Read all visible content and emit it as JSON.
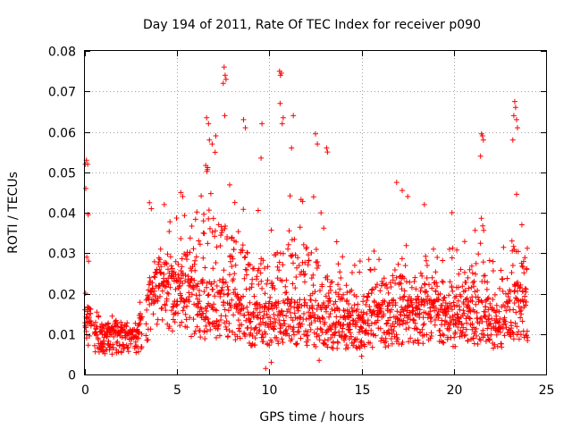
{
  "chart_data": {
    "type": "scatter",
    "title": "Day 194 of 2011, Rate Of TEC Index for receiver p090",
    "xlabel": "GPS time / hours",
    "ylabel": "ROTI / TECUs",
    "xlim": [
      0,
      25
    ],
    "ylim": [
      0,
      0.08
    ],
    "x_ticks": [
      0,
      5,
      10,
      15,
      20,
      25
    ],
    "y_ticks": [
      0,
      0.01,
      0.02,
      0.03,
      0.04,
      0.05,
      0.06,
      0.07,
      0.08
    ],
    "x_tick_labels": [
      "0",
      "5",
      "10",
      "15",
      "20",
      "25"
    ],
    "y_tick_labels": [
      "0",
      "0.01",
      "0.02",
      "0.03",
      "0.04",
      "0.05",
      "0.06",
      "0.07",
      "0.08"
    ],
    "grid": true,
    "marker": "plus",
    "marker_color": "#ff0000",
    "series": [
      {
        "name": "ROTI",
        "profile": {
          "hours": [
            0,
            0.3,
            0.5,
            1,
            2,
            2.8,
            3.2,
            3.5,
            4,
            5,
            6,
            7,
            7.5,
            8,
            9,
            10,
            11,
            12,
            13,
            14,
            15,
            16,
            17,
            18,
            19,
            20,
            20.5,
            21,
            21.5,
            22,
            22.5,
            23,
            23.5,
            24
          ],
          "median": [
            0.011,
            0.012,
            0.01,
            0.009,
            0.009,
            0.009,
            0.012,
            0.015,
            0.02,
            0.018,
            0.016,
            0.016,
            0.016,
            0.015,
            0.013,
            0.012,
            0.013,
            0.013,
            0.012,
            0.011,
            0.011,
            0.012,
            0.013,
            0.013,
            0.014,
            0.012,
            0.012,
            0.013,
            0.014,
            0.011,
            0.011,
            0.015,
            0.016,
            0.015
          ],
          "upper": [
            0.022,
            0.02,
            0.016,
            0.015,
            0.014,
            0.013,
            0.025,
            0.032,
            0.035,
            0.04,
            0.045,
            0.06,
            0.06,
            0.05,
            0.045,
            0.04,
            0.055,
            0.05,
            0.04,
            0.03,
            0.028,
            0.032,
            0.038,
            0.034,
            0.032,
            0.033,
            0.032,
            0.04,
            0.045,
            0.028,
            0.03,
            0.05,
            0.055,
            0.035
          ]
        },
        "outliers": [
          [
            0.02,
            0.052
          ],
          [
            0.08,
            0.053
          ],
          [
            0.15,
            0.052
          ],
          [
            0.05,
            0.046
          ],
          [
            0.18,
            0.0395
          ],
          [
            0.1,
            0.029
          ],
          [
            0.2,
            0.028
          ],
          [
            7.55,
            0.076
          ],
          [
            7.6,
            0.074
          ],
          [
            7.65,
            0.073
          ],
          [
            7.5,
            0.072
          ],
          [
            7.58,
            0.064
          ],
          [
            6.6,
            0.0635
          ],
          [
            6.7,
            0.062
          ],
          [
            6.75,
            0.058
          ],
          [
            6.9,
            0.057
          ],
          [
            7.1,
            0.059
          ],
          [
            10.55,
            0.075
          ],
          [
            10.6,
            0.074
          ],
          [
            10.65,
            0.0745
          ],
          [
            10.58,
            0.067
          ],
          [
            10.7,
            0.062
          ],
          [
            10.75,
            0.0635
          ],
          [
            8.6,
            0.063
          ],
          [
            8.7,
            0.061
          ],
          [
            11.3,
            0.064
          ],
          [
            11.2,
            0.056
          ],
          [
            9.6,
            0.062
          ],
          [
            9.55,
            0.0535
          ],
          [
            12.5,
            0.0595
          ],
          [
            12.6,
            0.057
          ],
          [
            13.1,
            0.056
          ],
          [
            13.15,
            0.055
          ],
          [
            21.5,
            0.0595
          ],
          [
            21.55,
            0.059
          ],
          [
            21.6,
            0.058
          ],
          [
            21.45,
            0.054
          ],
          [
            23.3,
            0.0675
          ],
          [
            23.35,
            0.066
          ],
          [
            23.4,
            0.063
          ],
          [
            23.25,
            0.064
          ],
          [
            23.45,
            0.061
          ],
          [
            23.2,
            0.058
          ],
          [
            5.2,
            0.045
          ],
          [
            5.3,
            0.044
          ],
          [
            4.3,
            0.042
          ],
          [
            3.5,
            0.0425
          ],
          [
            3.6,
            0.041
          ],
          [
            17.2,
            0.0455
          ],
          [
            17.5,
            0.044
          ],
          [
            16.9,
            0.0475
          ],
          [
            18.4,
            0.042
          ],
          [
            19.9,
            0.04
          ],
          [
            9.8,
            0.0015
          ],
          [
            10.1,
            0.003
          ],
          [
            15.0,
            0.0045
          ],
          [
            12.7,
            0.0035
          ]
        ]
      }
    ]
  }
}
